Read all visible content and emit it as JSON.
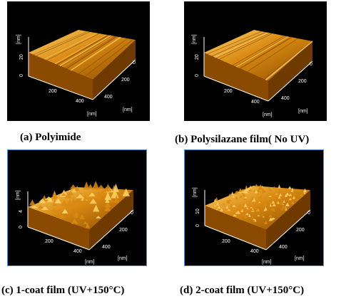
{
  "panels": [
    {
      "id": "a",
      "caption": "(a) Polyimide",
      "z_unit": "[nm]",
      "z_tick": "20",
      "z_zero": "0",
      "x_ticks": [
        "200",
        "400"
      ],
      "x_unit": "[nm]",
      "y_ticks": [
        "0",
        "200",
        "400"
      ],
      "y_unit": "[nm]",
      "texture": "smooth-streaked"
    },
    {
      "id": "b",
      "caption": "(b) Polysilazane film( No UV)",
      "z_unit": "[nm]",
      "z_tick": "20",
      "z_zero": "0",
      "x_ticks": [
        "200",
        "400"
      ],
      "x_unit": "[nm]",
      "y_ticks": [
        "0",
        "200",
        "400"
      ],
      "y_unit": "[nm]",
      "texture": "smooth-streaked"
    },
    {
      "id": "c",
      "caption": "(c) 1-coat film (UV+150°C)",
      "z_unit": "[nm]",
      "z_tick": "4",
      "z_zero": "0",
      "x_ticks": [
        "200",
        "400"
      ],
      "x_unit": "[nm]",
      "y_ticks": [
        "0",
        "200",
        "400"
      ],
      "y_unit": "[nm]",
      "texture": "rough-peaks"
    },
    {
      "id": "d",
      "caption": "(d) 2-coat film (UV+150°C)",
      "z_unit": "[nm]",
      "z_tick": "10",
      "z_zero": "0",
      "x_ticks": [
        "200",
        "400"
      ],
      "x_unit": "[nm]",
      "y_ticks": [
        "0",
        "200",
        "400"
      ],
      "y_unit": "[nm]",
      "texture": "fine-grain"
    }
  ],
  "colors": {
    "panel_background": "#000000",
    "frame": "#4a8fd1",
    "surface_dark": "#8a4a00",
    "surface_mid": "#d98a12",
    "surface_light": "#ffd36a",
    "axis": "#ffffff"
  }
}
